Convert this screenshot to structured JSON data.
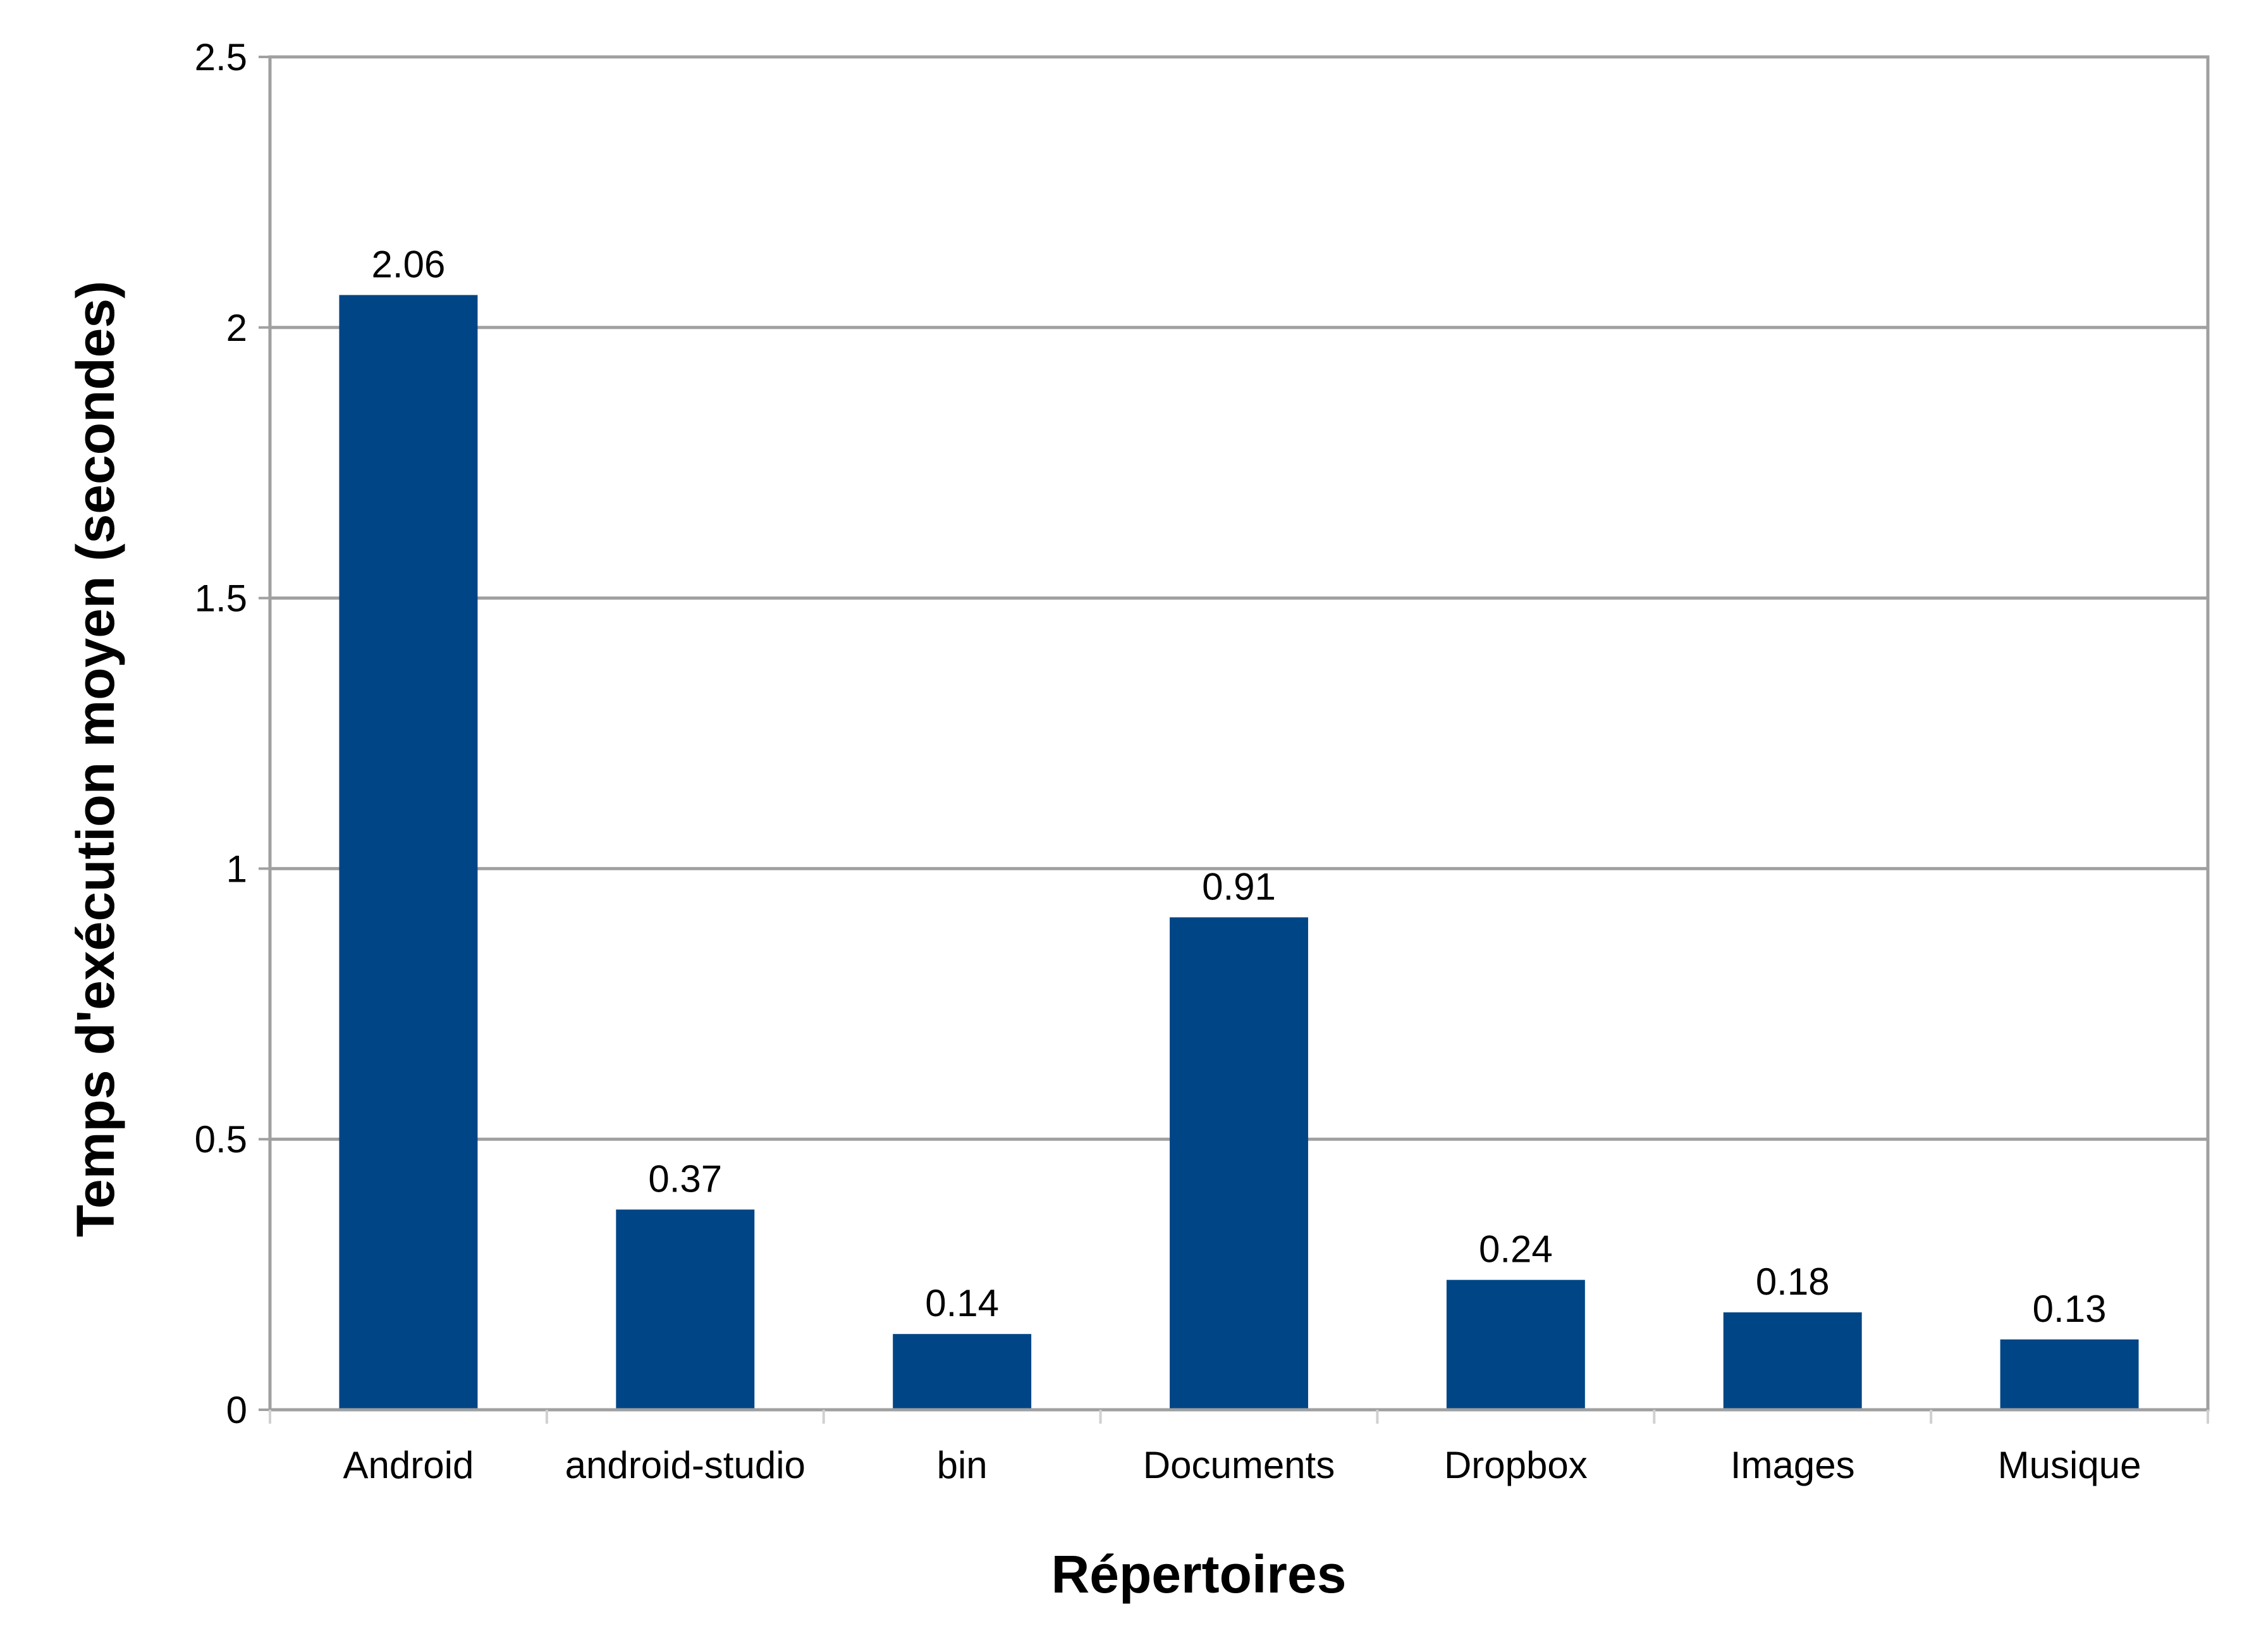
{
  "chart_data": {
    "type": "bar",
    "title": "",
    "xlabel": "Répertoires",
    "ylabel": "Temps d'exécution moyen (secondes)",
    "categories": [
      "Android",
      "android-studio",
      "bin",
      "Documents",
      "Dropbox",
      "Images",
      "Musique"
    ],
    "values": [
      2.06,
      0.37,
      0.14,
      0.91,
      0.24,
      0.18,
      0.13
    ],
    "data_labels": [
      "2.06",
      "0.37",
      "0.14",
      "0.91",
      "0.24",
      "0.18",
      "0.13"
    ],
    "ylim": [
      0,
      2.5
    ],
    "yticks": [
      0,
      0.5,
      1,
      1.5,
      2,
      2.5
    ],
    "ytick_labels": [
      "0",
      "0.5",
      "1",
      "1.5",
      "2",
      "2.5"
    ],
    "grid": true,
    "legend": "none",
    "colors": {
      "bar": "#004586",
      "grid": "#a0a0a0",
      "axis": "#a0a0a0",
      "text": "#000000"
    }
  }
}
